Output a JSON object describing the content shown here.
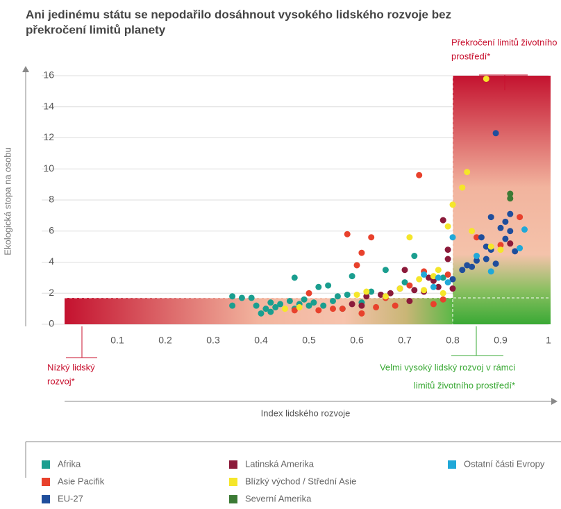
{
  "chart_data": {
    "type": "scatter",
    "title": [
      "Ani jedinému státu se nepodařilo dosáhnout vysokého lidského rozvoje bez",
      "překročení limitů planety"
    ],
    "xlabel": "Index lidského rozvoje",
    "ylabel": "Ekologická  stopa na osobu",
    "xlim": [
      0,
      1
    ],
    "ylim": [
      0,
      16
    ],
    "xticks": [
      0.1,
      0.2,
      0.3,
      0.4,
      0.5,
      0.6,
      0.7,
      0.8,
      0.9,
      1
    ],
    "yticks": [
      0,
      2,
      4,
      6,
      8,
      10,
      12,
      14,
      16
    ],
    "grid": true,
    "hdi_threshold": 0.8,
    "footprint_threshold": 1.7,
    "annotations": [
      {
        "lines": [
          "Překročení limitů životního",
          "prostředí*"
        ],
        "color": "#c8102e"
      },
      {
        "lines": [
          "Nízký lidský",
          "rozvoj*"
        ],
        "color": "#c8102e"
      },
      {
        "lines": [
          "Velmi vysoký lidský rozvoj v rámci",
          "limitů životního prostředí*"
        ],
        "color": "#3aa935"
      }
    ],
    "series": [
      {
        "name": "Afrika",
        "color": "#1a9e8f",
        "x": [
          0.34,
          0.34,
          0.38,
          0.39,
          0.4,
          0.41,
          0.42,
          0.43,
          0.44,
          0.46,
          0.47,
          0.48,
          0.49,
          0.5,
          0.51,
          0.52,
          0.53,
          0.54,
          0.55,
          0.56,
          0.57,
          0.58,
          0.59,
          0.61,
          0.63,
          0.66,
          0.7,
          0.72,
          0.78,
          0.47,
          0.42,
          0.36
        ],
        "y": [
          1.8,
          1.2,
          1.7,
          1.2,
          0.7,
          1.0,
          1.4,
          1.1,
          1.3,
          1.5,
          1.0,
          1.3,
          1.6,
          1.2,
          1.4,
          2.4,
          1.2,
          2.5,
          1.5,
          1.8,
          1.0,
          1.9,
          3.1,
          1.4,
          2.1,
          3.5,
          2.7,
          4.4,
          3.0,
          3.0,
          0.8,
          1.7
        ]
      },
      {
        "name": "Asie Pacifik",
        "color": "#e8412c",
        "x": [
          0.47,
          0.5,
          0.52,
          0.55,
          0.57,
          0.58,
          0.6,
          0.61,
          0.63,
          0.64,
          0.68,
          0.71,
          0.73,
          0.74,
          0.76,
          0.78,
          0.79,
          0.85,
          0.9,
          0.94,
          0.61,
          0.66
        ],
        "y": [
          0.9,
          2.0,
          0.9,
          1.0,
          1.0,
          5.8,
          3.8,
          4.6,
          5.6,
          1.1,
          1.2,
          2.5,
          9.6,
          3.4,
          1.3,
          1.6,
          3.2,
          5.6,
          5.1,
          6.9,
          0.7,
          1.7
        ]
      },
      {
        "name": "EU-27",
        "color": "#1f4e9c",
        "x": [
          0.8,
          0.82,
          0.84,
          0.85,
          0.86,
          0.87,
          0.88,
          0.88,
          0.89,
          0.9,
          0.91,
          0.92,
          0.92,
          0.93,
          0.89,
          0.91,
          0.87,
          0.83
        ],
        "y": [
          2.9,
          3.5,
          3.7,
          4.1,
          5.6,
          4.2,
          6.9,
          4.8,
          3.9,
          6.2,
          5.5,
          7.1,
          6.0,
          4.7,
          12.3,
          6.6,
          5.0,
          3.8
        ]
      },
      {
        "name": "Latinská Amerika",
        "color": "#8b1a3a",
        "x": [
          0.59,
          0.61,
          0.62,
          0.65,
          0.67,
          0.69,
          0.7,
          0.72,
          0.74,
          0.75,
          0.76,
          0.77,
          0.78,
          0.79,
          0.79,
          0.8,
          0.71,
          0.92
        ],
        "y": [
          1.3,
          1.2,
          1.8,
          1.9,
          2.0,
          2.3,
          3.5,
          2.2,
          2.1,
          3.0,
          2.8,
          2.4,
          6.7,
          4.8,
          4.2,
          2.3,
          1.5,
          5.2
        ]
      },
      {
        "name": "Blízký východ / Střední Asie",
        "color": "#f5e62a",
        "x": [
          0.45,
          0.48,
          0.6,
          0.62,
          0.66,
          0.69,
          0.71,
          0.73,
          0.74,
          0.76,
          0.77,
          0.79,
          0.8,
          0.82,
          0.83,
          0.84,
          0.87,
          0.88,
          0.9,
          0.78
        ],
        "y": [
          1.0,
          1.1,
          1.9,
          2.1,
          1.8,
          2.3,
          5.6,
          2.9,
          2.2,
          3.1,
          3.5,
          6.3,
          7.7,
          8.8,
          9.8,
          6.0,
          15.8,
          5.0,
          4.8,
          2.0
        ]
      },
      {
        "name": "Severní Amerika",
        "color": "#3c7a35",
        "x": [
          0.92,
          0.92
        ],
        "y": [
          8.4,
          8.1
        ]
      },
      {
        "name": "Ostatní části Evropy",
        "color": "#20a8d8",
        "x": [
          0.74,
          0.77,
          0.79,
          0.8,
          0.85,
          0.88,
          0.95,
          0.94,
          0.76
        ],
        "y": [
          3.2,
          3.0,
          2.7,
          5.6,
          4.4,
          3.4,
          6.1,
          4.9,
          2.4
        ]
      }
    ]
  }
}
